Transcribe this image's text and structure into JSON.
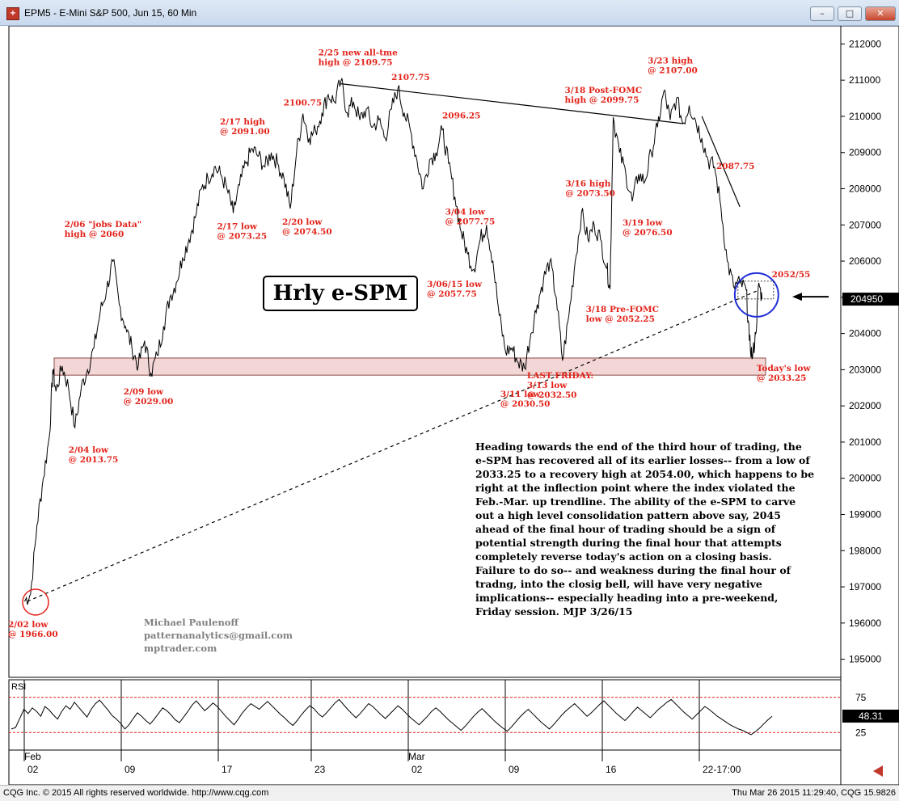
{
  "window": {
    "title": "EPM5 - E-Mini S&P 500, Jun 15, 60 Min",
    "buttons": {
      "minimize": "–",
      "maximize": "□",
      "close": "✕"
    }
  },
  "statusbar": {
    "left": "CQG Inc. © 2015 All rights reserved worldwide. http://www.cqg.com",
    "right": "Thu Mar 26 2015 11:29:40, CQG 15.9826"
  },
  "chart_label": "Hrly e-SPM",
  "signature": [
    "Michael Paulenoff",
    "patternanalytics@gmail.com",
    "mptrader.com"
  ],
  "commentary": "Heading towards the end of the third hour of trading, the e-SPM has recovered all of its earlier losses-- from a low of 2033.25 to a recovery high at 2054.00, which happens to be right at the inflection point where the index violated the Feb.-Mar. up trendline.  The ability of the e-SPM to carve out a high level consolidation pattern above say, 2045 ahead of the final hour of trading should be a sign of potential strength during the final hour that attempts completely reverse today's action on a closing basis. Failure to do so-- and weakness during the final hour of tradng, into the closig bell, will have very negative implications-- especially heading into a pre-weekend, Friday session. MJP 3/26/15",
  "colors": {
    "annotation": "#e2231a",
    "price_line": "#000000",
    "highlight_circle": "#1f2fd6",
    "low_circle": "#e2231a",
    "rsi_ref": "#e2231a",
    "support_band": "#f3d6d6"
  },
  "chart_data": [
    {
      "type": "line",
      "title": "EPM5 - E-Mini S&P 500, Jun 15, 60 Min",
      "ylim": [
        1945,
        2125
      ],
      "y_ticks": [
        212000,
        211000,
        210000,
        209000,
        208000,
        207000,
        206000,
        205000,
        204000,
        203000,
        202000,
        201000,
        200000,
        199000,
        198000,
        197000,
        196000,
        195000
      ],
      "x_day_ticks": [
        "02",
        "09",
        "17",
        "23",
        "02",
        "09",
        "16",
        "22-17:00"
      ],
      "month_labels": [
        "Feb",
        "Mar"
      ],
      "last_price_label": "204950",
      "current_price_level": 2049.5,
      "x_range": [
        0,
        240
      ],
      "price_path": [
        {
          "x": 0,
          "y": 1966
        },
        {
          "x": 2,
          "y": 1968
        },
        {
          "x": 4,
          "y": 1987
        },
        {
          "x": 6,
          "y": 2000
        },
        {
          "x": 8,
          "y": 2012
        },
        {
          "x": 9,
          "y": 2030
        },
        {
          "x": 10,
          "y": 2024
        },
        {
          "x": 12,
          "y": 2031
        },
        {
          "x": 14,
          "y": 2025
        },
        {
          "x": 16,
          "y": 2014
        },
        {
          "x": 18,
          "y": 2025
        },
        {
          "x": 20,
          "y": 2030
        },
        {
          "x": 22,
          "y": 2036
        },
        {
          "x": 24,
          "y": 2046
        },
        {
          "x": 26,
          "y": 2052
        },
        {
          "x": 28,
          "y": 2060
        },
        {
          "x": 30,
          "y": 2048
        },
        {
          "x": 32,
          "y": 2042
        },
        {
          "x": 34,
          "y": 2036
        },
        {
          "x": 36,
          "y": 2031
        },
        {
          "x": 38,
          "y": 2038
        },
        {
          "x": 40,
          "y": 2029
        },
        {
          "x": 42,
          "y": 2034
        },
        {
          "x": 44,
          "y": 2042
        },
        {
          "x": 46,
          "y": 2050
        },
        {
          "x": 48,
          "y": 2054
        },
        {
          "x": 50,
          "y": 2061
        },
        {
          "x": 52,
          "y": 2066
        },
        {
          "x": 54,
          "y": 2072
        },
        {
          "x": 56,
          "y": 2080
        },
        {
          "x": 58,
          "y": 2083
        },
        {
          "x": 60,
          "y": 2086
        },
        {
          "x": 62,
          "y": 2084
        },
        {
          "x": 64,
          "y": 2080
        },
        {
          "x": 66,
          "y": 2073.25
        },
        {
          "x": 68,
          "y": 2081
        },
        {
          "x": 70,
          "y": 2087
        },
        {
          "x": 72,
          "y": 2091
        },
        {
          "x": 74,
          "y": 2089
        },
        {
          "x": 76,
          "y": 2086
        },
        {
          "x": 78,
          "y": 2090
        },
        {
          "x": 80,
          "y": 2087
        },
        {
          "x": 82,
          "y": 2083
        },
        {
          "x": 84,
          "y": 2074.5
        },
        {
          "x": 86,
          "y": 2090
        },
        {
          "x": 88,
          "y": 2100.75
        },
        {
          "x": 90,
          "y": 2094
        },
        {
          "x": 92,
          "y": 2096
        },
        {
          "x": 94,
          "y": 2101
        },
        {
          "x": 96,
          "y": 2106
        },
        {
          "x": 98,
          "y": 2104
        },
        {
          "x": 100,
          "y": 2109.75
        },
        {
          "x": 102,
          "y": 2101
        },
        {
          "x": 104,
          "y": 2104
        },
        {
          "x": 106,
          "y": 2099
        },
        {
          "x": 108,
          "y": 2102
        },
        {
          "x": 110,
          "y": 2097
        },
        {
          "x": 112,
          "y": 2099
        },
        {
          "x": 114,
          "y": 2094
        },
        {
          "x": 116,
          "y": 2102
        },
        {
          "x": 118,
          "y": 2107.75
        },
        {
          "x": 120,
          "y": 2101
        },
        {
          "x": 122,
          "y": 2096
        },
        {
          "x": 124,
          "y": 2088
        },
        {
          "x": 126,
          "y": 2080
        },
        {
          "x": 128,
          "y": 2088
        },
        {
          "x": 130,
          "y": 2090
        },
        {
          "x": 132,
          "y": 2096.25
        },
        {
          "x": 134,
          "y": 2087
        },
        {
          "x": 136,
          "y": 2077.75
        },
        {
          "x": 138,
          "y": 2068
        },
        {
          "x": 140,
          "y": 2062
        },
        {
          "x": 142,
          "y": 2057.75
        },
        {
          "x": 144,
          "y": 2066
        },
        {
          "x": 146,
          "y": 2070
        },
        {
          "x": 148,
          "y": 2060
        },
        {
          "x": 150,
          "y": 2045
        },
        {
          "x": 152,
          "y": 2035
        },
        {
          "x": 154,
          "y": 2036
        },
        {
          "x": 156,
          "y": 2032
        },
        {
          "x": 158,
          "y": 2030.5
        },
        {
          "x": 160,
          "y": 2040
        },
        {
          "x": 162,
          "y": 2048
        },
        {
          "x": 164,
          "y": 2055
        },
        {
          "x": 166,
          "y": 2060
        },
        {
          "x": 168,
          "y": 2050
        },
        {
          "x": 170,
          "y": 2032.5
        },
        {
          "x": 172,
          "y": 2045
        },
        {
          "x": 174,
          "y": 2060
        },
        {
          "x": 176,
          "y": 2073.5
        },
        {
          "x": 178,
          "y": 2066
        },
        {
          "x": 180,
          "y": 2070
        },
        {
          "x": 182,
          "y": 2066
        },
        {
          "x": 184,
          "y": 2058
        },
        {
          "x": 185,
          "y": 2052.25
        },
        {
          "x": 186,
          "y": 2099.75
        },
        {
          "x": 188,
          "y": 2090
        },
        {
          "x": 190,
          "y": 2084
        },
        {
          "x": 192,
          "y": 2076.5
        },
        {
          "x": 194,
          "y": 2084
        },
        {
          "x": 196,
          "y": 2082
        },
        {
          "x": 198,
          "y": 2090
        },
        {
          "x": 200,
          "y": 2097
        },
        {
          "x": 202,
          "y": 2107
        },
        {
          "x": 204,
          "y": 2099
        },
        {
          "x": 206,
          "y": 2105
        },
        {
          "x": 208,
          "y": 2098
        },
        {
          "x": 210,
          "y": 2103
        },
        {
          "x": 212,
          "y": 2099
        },
        {
          "x": 214,
          "y": 2094
        },
        {
          "x": 216,
          "y": 2087.75
        },
        {
          "x": 218,
          "y": 2086
        },
        {
          "x": 220,
          "y": 2075
        },
        {
          "x": 222,
          "y": 2060
        },
        {
          "x": 224,
          "y": 2053
        },
        {
          "x": 226,
          "y": 2054
        },
        {
          "x": 228,
          "y": 2052
        },
        {
          "x": 229,
          "y": 2038
        },
        {
          "x": 230,
          "y": 2033.25
        },
        {
          "x": 231,
          "y": 2040
        },
        {
          "x": 232,
          "y": 2054
        },
        {
          "x": 233,
          "y": 2049.5
        }
      ],
      "trendlines": [
        {
          "style": "solid",
          "from": {
            "x": 100,
            "y": 2109
          },
          "to": {
            "x": 208,
            "y": 2098
          }
        },
        {
          "style": "solid",
          "from": {
            "x": 214,
            "y": 2100
          },
          "to": {
            "x": 226,
            "y": 2075
          }
        },
        {
          "style": "dashed",
          "from": {
            "x": 1,
            "y": 1966
          },
          "to": {
            "x": 232,
            "y": 2052
          }
        }
      ],
      "support_band": {
        "y_low": 2030.5,
        "y_high": 2033
      },
      "annotations": [
        {
          "x": 100,
          "y": 2109.75,
          "lines": [
            "2/25 new all-tme",
            "high @ 2109.75"
          ]
        },
        {
          "x": 118,
          "y": 2107.75,
          "lines": [
            "2107.75"
          ]
        },
        {
          "x": 88,
          "y": 2100.75,
          "lines": [
            "2100.75"
          ]
        },
        {
          "x": 72,
          "y": 2091,
          "lines": [
            "2/17 high",
            "@ 2091.00"
          ]
        },
        {
          "x": 132,
          "y": 2096.25,
          "lines": [
            "2096.25"
          ]
        },
        {
          "x": 186,
          "y": 2099.75,
          "lines": [
            "3/18 Post-FOMC",
            "high @ 2099.75"
          ]
        },
        {
          "x": 202,
          "y": 2107,
          "lines": [
            "3/23 high",
            "@ 2107.00"
          ]
        },
        {
          "x": 216,
          "y": 2087.75,
          "lines": [
            "2087.75"
          ]
        },
        {
          "x": 28,
          "y": 2060,
          "lines": [
            "2/06 \"jobs Data\"",
            "high @ 2060"
          ]
        },
        {
          "x": 66,
          "y": 2073.25,
          "lines": [
            "2/17 low",
            "@ 2073.25"
          ]
        },
        {
          "x": 84,
          "y": 2074.5,
          "lines": [
            "2/20 low",
            "@ 2074.50"
          ]
        },
        {
          "x": 136,
          "y": 2077.75,
          "lines": [
            "3/04 low",
            "@ 2077.75"
          ]
        },
        {
          "x": 176,
          "y": 2073.5,
          "lines": [
            "3/16 high",
            "@ 2073.50"
          ]
        },
        {
          "x": 192,
          "y": 2076.5,
          "lines": [
            "3/19 low",
            "@ 2076.50"
          ]
        },
        {
          "x": 142,
          "y": 2057.75,
          "lines": [
            "3/06/15 low",
            "@ 2057.75"
          ]
        },
        {
          "x": 185,
          "y": 2052.25,
          "lines": [
            "3/18 Pre-FOMC",
            "low @ 2052.25"
          ]
        },
        {
          "x": 232,
          "y": 2052,
          "lines": [
            "2052/55"
          ]
        },
        {
          "x": 230,
          "y": 2033.25,
          "lines": [
            "Today's low",
            "@ 2033.25"
          ]
        },
        {
          "x": 170,
          "y": 2032.5,
          "lines": [
            "LAST FRIDAY:",
            "3/13 low",
            "@ 2032.50"
          ]
        },
        {
          "x": 158,
          "y": 2030.5,
          "lines": [
            "3/11 low",
            "@ 2030.50"
          ]
        },
        {
          "x": 40,
          "y": 2029,
          "lines": [
            "2/09 low",
            "@ 2029.00"
          ]
        },
        {
          "x": 16,
          "y": 2013.75,
          "lines": [
            "2/04 low",
            "@ 2013.75"
          ]
        },
        {
          "x": 0,
          "y": 1966,
          "lines": [
            "2/02 low",
            "@ 1966.00"
          ]
        }
      ]
    },
    {
      "type": "line",
      "title": "RSI",
      "ylim": [
        0,
        100
      ],
      "y_ticks": [
        75,
        25
      ],
      "reference_lines": [
        75,
        25
      ],
      "last_value_label": "48.31",
      "last_value": 48.31,
      "values": [
        30,
        32,
        45,
        58,
        52,
        60,
        55,
        48,
        62,
        57,
        50,
        44,
        55,
        63,
        58,
        68,
        61,
        54,
        47,
        58,
        66,
        71,
        64,
        57,
        49,
        44,
        38,
        30,
        36,
        45,
        53,
        48,
        42,
        37,
        44,
        52,
        60,
        56,
        50,
        43,
        39,
        47,
        55,
        64,
        70,
        63,
        56,
        61,
        67,
        62,
        55,
        48,
        42,
        36,
        44,
        53,
        60,
        66,
        62,
        58,
        64,
        69,
        63,
        57,
        51,
        46,
        40,
        35,
        42,
        50,
        57,
        63,
        59,
        52,
        47,
        53,
        60,
        67,
        72,
        65,
        58,
        52,
        46,
        52,
        59,
        66,
        62,
        56,
        50,
        45,
        51,
        57,
        63,
        58,
        52,
        46,
        41,
        36,
        42,
        48,
        55,
        60,
        55,
        49,
        43,
        38,
        33,
        28,
        34,
        41,
        48,
        54,
        59,
        53,
        47,
        41,
        36,
        31,
        27,
        33,
        40,
        47,
        53,
        58,
        52,
        46,
        40,
        35,
        30,
        36,
        43,
        50,
        56,
        61,
        66,
        60,
        54,
        48,
        53,
        59,
        65,
        70,
        64,
        58,
        52,
        47,
        42,
        48,
        55,
        61,
        56,
        51,
        46,
        52,
        58,
        63,
        68,
        72,
        66,
        60,
        54,
        49,
        44,
        50,
        56,
        62,
        58,
        53,
        48,
        44,
        40,
        36,
        33,
        30,
        28,
        25,
        22,
        26,
        31,
        37,
        43,
        48
      ]
    }
  ]
}
